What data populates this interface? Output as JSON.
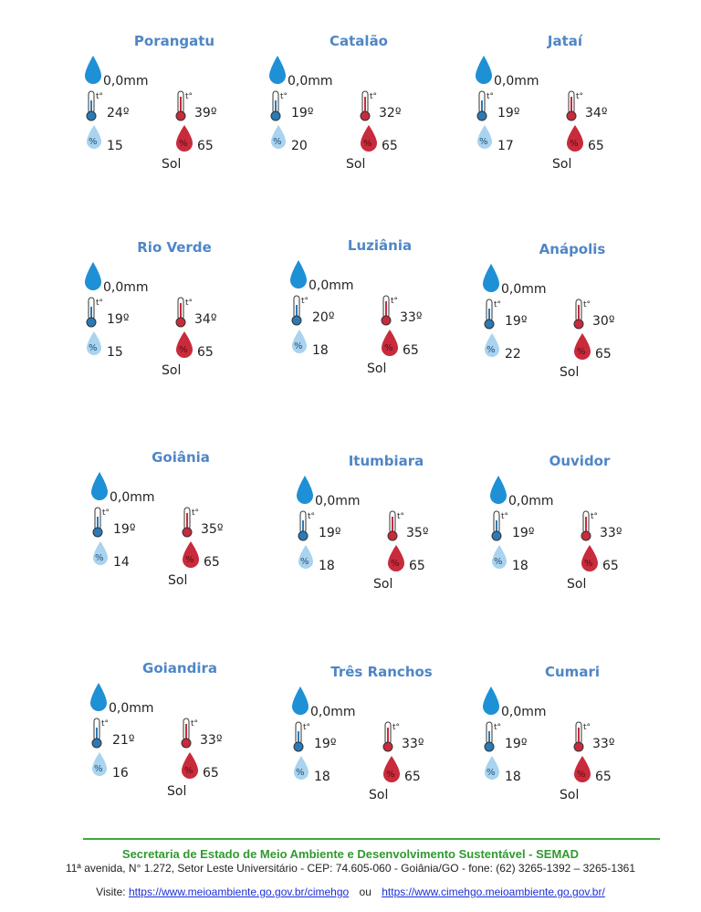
{
  "cities": [
    {
      "name": "Porangatu",
      "rain": "0,0mm",
      "tmin": "24º",
      "tmax": "39º",
      "hmin": "15",
      "hmax": "65",
      "sky": "Sol"
    },
    {
      "name": "Catalão",
      "rain": "0,0mm",
      "tmin": "19º",
      "tmax": "32º",
      "hmin": "20",
      "hmax": "65",
      "sky": "Sol"
    },
    {
      "name": "Jataí",
      "rain": "0,0mm",
      "tmin": "19º",
      "tmax": "34º",
      "hmin": "17",
      "hmax": "65",
      "sky": "Sol"
    },
    {
      "name": "Rio Verde",
      "rain": "0,0mm",
      "tmin": "19º",
      "tmax": "34º",
      "hmin": "15",
      "hmax": "65",
      "sky": "Sol"
    },
    {
      "name": "Luziânia",
      "rain": "0,0mm",
      "tmin": "20º",
      "tmax": "33º",
      "hmin": "18",
      "hmax": "65",
      "sky": "Sol"
    },
    {
      "name": "Anápolis",
      "rain": "0,0mm",
      "tmin": "19º",
      "tmax": "30º",
      "hmin": "22",
      "hmax": "65",
      "sky": "Sol"
    },
    {
      "name": "Goiânia",
      "rain": "0,0mm",
      "tmin": "19º",
      "tmax": "35º",
      "hmin": "14",
      "hmax": "65",
      "sky": "Sol"
    },
    {
      "name": "Itumbiara",
      "rain": "0,0mm",
      "tmin": "19º",
      "tmax": "35º",
      "hmin": "18",
      "hmax": "65",
      "sky": "Sol"
    },
    {
      "name": "Ouvidor",
      "rain": "0,0mm",
      "tmin": "19º",
      "tmax": "33º",
      "hmin": "18",
      "hmax": "65",
      "sky": "Sol"
    },
    {
      "name": "Goiandira",
      "rain": "0,0mm",
      "tmin": "21º",
      "tmax": "33º",
      "hmin": "16",
      "hmax": "65",
      "sky": "Sol"
    },
    {
      "name": "Três Ranchos",
      "rain": "0,0mm",
      "tmin": "19º",
      "tmax": "33º",
      "hmin": "18",
      "hmax": "65",
      "sky": "Sol"
    },
    {
      "name": "Cumari",
      "rain": "0,0mm",
      "tmin": "19º",
      "tmax": "33º",
      "hmin": "18",
      "hmax": "65",
      "sky": "Sol"
    }
  ],
  "icons": {
    "rain": "rain-drop-icon",
    "tmin": "thermometer-min-icon",
    "tmax": "thermometer-max-icon",
    "hmin": "humidity-min-icon",
    "hmax": "humidity-max-icon",
    "thermo_mark": "t°"
  },
  "colors": {
    "city_title": "#4f86c6",
    "rain": "#1e90d6",
    "cold": "#2a7ab8",
    "hot": "#c82b3b",
    "humidity_low": "#a9d3ee",
    "footer_org": "#2f9a2f",
    "link": "#1a2fd6"
  },
  "footer": {
    "org": "Secretaria de Estado de Meio Ambiente e Desenvolvimento Sustentável - SEMAD",
    "address": "11ª avenida, N° 1.272, Setor Leste Universitário - CEP: 74.605-060 - Goiânia/GO - fone: (62) 3265-1392 – 3265-1361",
    "visit_label": "Visite:",
    "link1": "https://www.meioambiente.go.gov.br/cimehgo",
    "or": "ou",
    "link2": "https://www.cimehgo.meioambiente.go.gov.br/"
  }
}
